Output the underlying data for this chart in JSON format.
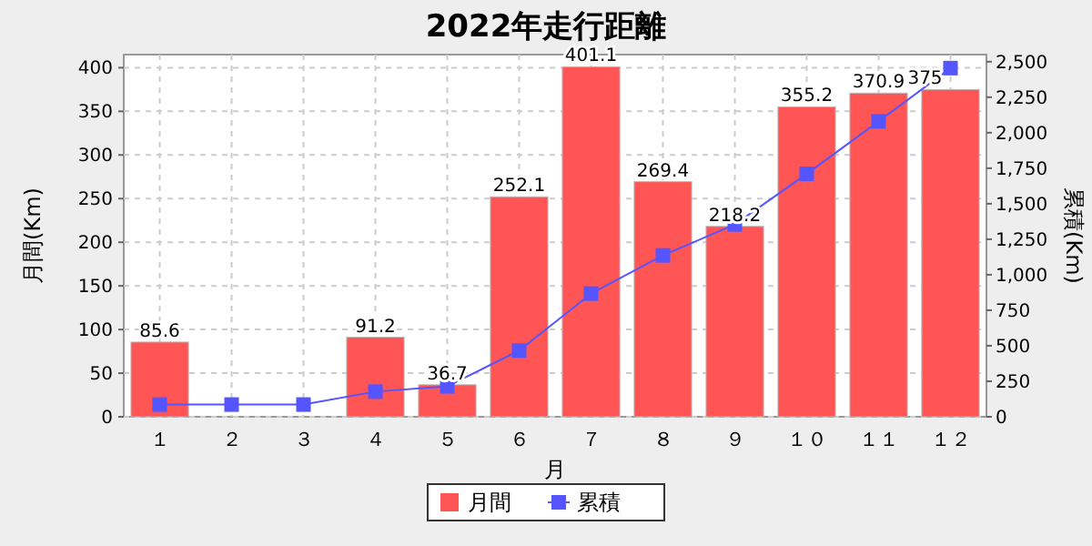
{
  "chart_data": {
    "type": "bar",
    "title": "2022年走行距離",
    "xlabel": "月",
    "ylabel": "月間(Km)",
    "y2label": "累積(Km)",
    "categories": [
      "１",
      "２",
      "３",
      "４",
      "５",
      "６",
      "７",
      "８",
      "９",
      "１０",
      "１１",
      "１２"
    ],
    "series": [
      {
        "name": "月間",
        "color": "#ff5555",
        "values": [
          85.6,
          0,
          0,
          91.2,
          36.7,
          252.1,
          401.1,
          269.4,
          218.2,
          355.2,
          370.9,
          375
        ],
        "value_labels": [
          "85.6",
          null,
          null,
          "91.2",
          "36.7",
          "252.1",
          "401.1",
          "269.4",
          "218.2",
          "355.2",
          "370.9",
          "375"
        ]
      },
      {
        "name": "累積",
        "type": "line",
        "axis": "y2",
        "color": "#5555ff",
        "values": [
          86,
          86,
          86,
          177,
          214,
          466,
          867,
          1136,
          1354,
          1710,
          2080,
          2455
        ]
      }
    ],
    "ylim": [
      0,
      415
    ],
    "yticks": [
      0,
      50,
      100,
      150,
      200,
      250,
      300,
      350,
      400
    ],
    "y2lim": [
      0,
      2550
    ],
    "y2ticks": [
      {
        "value": 0,
        "label": "0"
      },
      {
        "value": 250,
        "label": "250"
      },
      {
        "value": 500,
        "label": "500"
      },
      {
        "value": 750,
        "label": "750"
      },
      {
        "value": 1000,
        "label": "1,000"
      },
      {
        "value": 1250,
        "label": "1,250"
      },
      {
        "value": 1500,
        "label": "1,500"
      },
      {
        "value": 1750,
        "label": "1,750"
      },
      {
        "value": 2000,
        "label": "2,000"
      },
      {
        "value": 2250,
        "label": "2,250"
      },
      {
        "value": 2500,
        "label": "2,500"
      }
    ],
    "grid": true,
    "legend": "bottom",
    "marker": "square",
    "line_style": "solid"
  }
}
